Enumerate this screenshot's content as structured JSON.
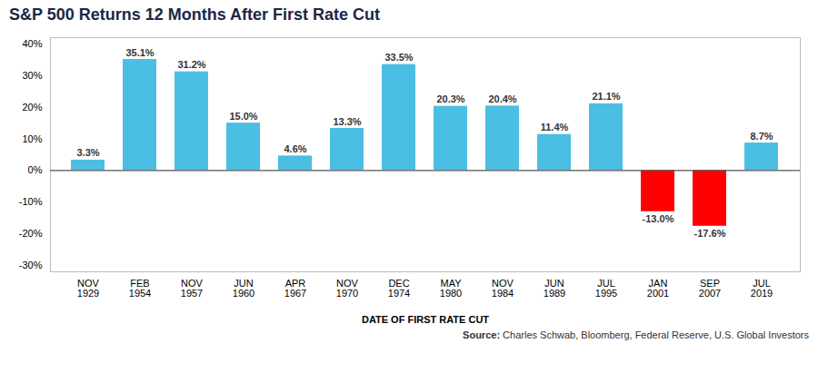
{
  "chart_data": {
    "type": "bar",
    "title": "S&P 500 Returns 12 Months After First Rate Cut",
    "x_label": "DATE OF FIRST RATE CUT",
    "categories": [
      "NOV\n1929",
      "FEB\n1954",
      "NOV\n1957",
      "JUN\n1960",
      "APR\n1967",
      "NOV\n1970",
      "DEC\n1974",
      "MAY\n1980",
      "NOV\n1984",
      "JUN\n1989",
      "JUL\n1995",
      "JAN\n2001",
      "SEP\n2007",
      "JUL\n2019"
    ],
    "values": [
      3.3,
      35.1,
      31.2,
      15.0,
      4.6,
      13.3,
      33.5,
      20.3,
      20.4,
      11.4,
      21.1,
      -13.0,
      -17.6,
      8.7
    ],
    "value_labels": [
      "3.3%",
      "35.1%",
      "31.2%",
      "15.0%",
      "4.6%",
      "13.3%",
      "33.5%",
      "20.3%",
      "20.4%",
      "11.4%",
      "21.1%",
      "-13.0%",
      "-17.6%",
      "8.7%"
    ],
    "colors": [
      "#4BBEE3",
      "#4BBEE3",
      "#4BBEE3",
      "#4BBEE3",
      "#4BBEE3",
      "#4BBEE3",
      "#4BBEE3",
      "#4BBEE3",
      "#4BBEE3",
      "#4BBEE3",
      "#4BBEE3",
      "#FF0000",
      "#FF0000",
      "#4BBEE3"
    ],
    "ylim": [
      -32,
      42
    ],
    "yticks": [
      {
        "value": -30,
        "label": "-30%"
      },
      {
        "value": -20,
        "label": "-20%"
      },
      {
        "value": -10,
        "label": "-10%"
      },
      {
        "value": 0,
        "label": "0%"
      },
      {
        "value": 10,
        "label": "10%"
      },
      {
        "value": 20,
        "label": "20%"
      },
      {
        "value": 30,
        "label": "30%"
      },
      {
        "value": 40,
        "label": "40%"
      }
    ],
    "grid": false,
    "data_labels": true,
    "annotations": [
      "Source: Charles Schwab, Bloomberg, Federal Reserve, U.S. Global Investors"
    ]
  }
}
